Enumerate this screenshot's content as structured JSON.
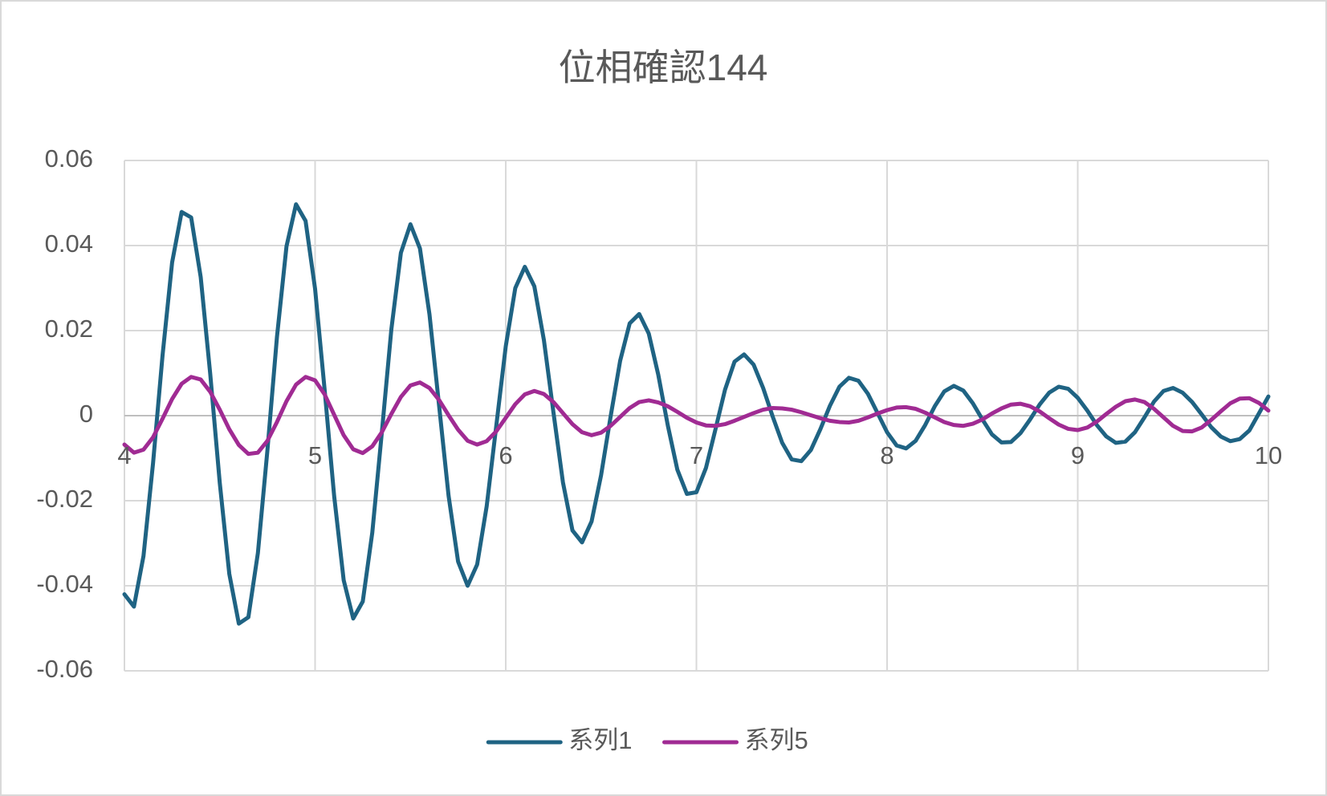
{
  "chart_data": {
    "type": "line",
    "title": "位相確認144",
    "x": [
      4,
      4.05,
      4.1,
      4.15,
      4.2,
      4.25,
      4.3,
      4.35,
      4.4,
      4.45,
      4.5,
      4.55,
      4.6,
      4.65,
      4.7,
      4.75,
      4.8,
      4.85,
      4.9,
      4.95,
      5,
      5.05,
      5.1,
      5.15,
      5.2,
      5.25,
      5.3,
      5.35,
      5.4,
      5.45,
      5.5,
      5.55,
      5.6,
      5.65,
      5.7,
      5.75,
      5.8,
      5.85,
      5.9,
      5.95,
      6,
      6.05,
      6.1,
      6.15,
      6.2,
      6.25,
      6.3,
      6.35,
      6.4,
      6.45,
      6.5,
      6.55,
      6.6,
      6.65,
      6.7,
      6.75,
      6.8,
      6.85,
      6.9,
      6.95,
      7,
      7.05,
      7.1,
      7.15,
      7.2,
      7.25,
      7.3,
      7.35,
      7.4,
      7.45,
      7.5,
      7.55,
      7.6,
      7.65,
      7.7,
      7.75,
      7.8,
      7.85,
      7.9,
      7.95,
      8,
      8.05,
      8.1,
      8.15,
      8.2,
      8.25,
      8.3,
      8.35,
      8.4,
      8.45,
      8.5,
      8.55,
      8.6,
      8.65,
      8.7,
      8.75,
      8.8,
      8.85,
      8.9,
      8.95,
      9,
      9.05,
      9.1,
      9.15,
      9.2,
      9.25,
      9.3,
      9.35,
      9.4,
      9.45,
      9.5,
      9.55,
      9.6,
      9.65,
      9.7,
      9.75,
      9.8,
      9.85,
      9.9,
      9.95,
      10
    ],
    "series": [
      {
        "name": "系列1",
        "color": "#1f6383",
        "values": [
          -0.042,
          -0.0449,
          -0.033,
          -0.0112,
          0.0142,
          0.036,
          0.0479,
          0.0466,
          0.0326,
          0.0098,
          -0.0158,
          -0.0372,
          -0.0489,
          -0.0474,
          -0.0323,
          -0.0081,
          0.0185,
          0.0398,
          0.0497,
          0.0458,
          0.0298,
          0.0061,
          -0.0189,
          -0.0387,
          -0.0477,
          -0.0437,
          -0.0275,
          -0.004,
          0.0203,
          0.0383,
          0.045,
          0.0393,
          0.0238,
          0.0025,
          -0.0188,
          -0.0343,
          -0.04,
          -0.035,
          -0.0213,
          -0.0025,
          0.0163,
          0.03,
          0.035,
          0.0304,
          0.0178,
          0.0008,
          -0.0157,
          -0.027,
          -0.0298,
          -0.0249,
          -0.014,
          -0.0002,
          0.0129,
          0.0217,
          0.0239,
          0.0193,
          0.0096,
          -0.0023,
          -0.0127,
          -0.0184,
          -0.018,
          -0.0123,
          -0.0032,
          0.0061,
          0.0127,
          0.0144,
          0.012,
          0.0065,
          -0.0002,
          -0.0064,
          -0.0103,
          -0.0107,
          -0.0081,
          -0.0032,
          0.0023,
          0.0068,
          0.0089,
          0.0082,
          0.0051,
          0.0006,
          -0.0039,
          -0.007,
          -0.0077,
          -0.0059,
          -0.0022,
          0.0022,
          0.0057,
          0.007,
          0.0059,
          0.0029,
          -0.0009,
          -0.0044,
          -0.0063,
          -0.0062,
          -0.0041,
          -0.0009,
          0.0026,
          0.0054,
          0.0068,
          0.0063,
          0.0042,
          0.0012,
          -0.0022,
          -0.0049,
          -0.0064,
          -0.0061,
          -0.0039,
          -0.0004,
          0.0033,
          0.0058,
          0.0065,
          0.0054,
          0.0032,
          0.0003,
          -0.0027,
          -0.0049,
          -0.006,
          -0.0055,
          -0.0035,
          0.0005,
          0.0045
        ]
      },
      {
        "name": "系列5",
        "color": "#a02b93",
        "values": [
          -0.0068,
          -0.0087,
          -0.008,
          -0.0051,
          -0.0007,
          0.0039,
          0.0075,
          0.0091,
          0.0085,
          0.0056,
          0.0014,
          -0.0032,
          -0.0069,
          -0.009,
          -0.0087,
          -0.0059,
          -0.0015,
          0.0034,
          0.0073,
          0.0091,
          0.0083,
          0.005,
          0.0002,
          -0.0046,
          -0.0079,
          -0.0088,
          -0.0072,
          -0.0039,
          0.0004,
          0.0044,
          0.0071,
          0.0078,
          0.0065,
          0.0037,
          0.0001,
          -0.0033,
          -0.0059,
          -0.0068,
          -0.006,
          -0.0037,
          -0.0005,
          0.0027,
          0.005,
          0.0058,
          0.0051,
          0.0032,
          0.0006,
          -0.002,
          -0.0039,
          -0.0046,
          -0.004,
          -0.0024,
          -0.0003,
          0.0018,
          0.0032,
          0.0036,
          0.0031,
          0.0022,
          0.0009,
          -0.0005,
          -0.0016,
          -0.0023,
          -0.0024,
          -0.002,
          -0.0012,
          -0.0003,
          0.0006,
          0.0014,
          0.0018,
          0.0017,
          0.0014,
          0.0008,
          0.0001,
          -0.0006,
          -0.0012,
          -0.0015,
          -0.0016,
          -0.0012,
          -0.0004,
          0.0005,
          0.0013,
          0.0019,
          0.002,
          0.0016,
          0.0007,
          -0.0004,
          -0.0015,
          -0.0022,
          -0.0024,
          -0.0019,
          -0.0009,
          0.0005,
          0.0017,
          0.0026,
          0.0028,
          0.0022,
          0.001,
          -0.0006,
          -0.0021,
          -0.0031,
          -0.0034,
          -0.0028,
          -0.0014,
          0.0004,
          0.0021,
          0.0034,
          0.0038,
          0.0032,
          0.0016,
          -0.0004,
          -0.0024,
          -0.0036,
          -0.0037,
          -0.0028,
          -0.001,
          0.001,
          0.0029,
          0.004,
          0.0041,
          0.003,
          0.0012
        ]
      }
    ],
    "xlim": [
      4,
      10
    ],
    "xticks": [
      4,
      5,
      6,
      7,
      8,
      9,
      10
    ],
    "ylim": [
      -0.06,
      0.06
    ],
    "yticks": [
      -0.06,
      -0.04,
      -0.02,
      0,
      0.02,
      0.04,
      0.06
    ],
    "grid": true,
    "legend": "bottom"
  }
}
